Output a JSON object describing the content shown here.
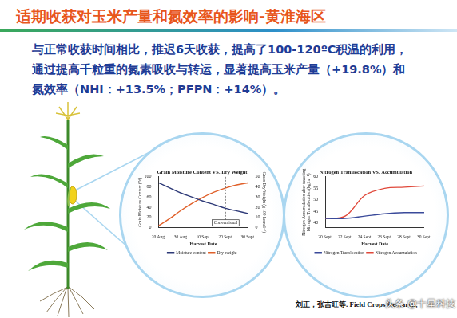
{
  "slide": {
    "title": "适期收获对玉米产量和氮效率的影响-黄淮海区",
    "body": [
      "与正常收获时间相比，推迟6天收获，提高了100-120ºC积温的利用，",
      "通过提高千粒重的氮素吸收与转运，显著提高玉米产量（+19.8%）和",
      "氮效率（NHI：+13.5%；PFPN：+14%）。"
    ],
    "citation": "刘正，张吉旺等. Field Crops Research,",
    "watermark": "头条 @十星科技"
  },
  "chart_data": [
    {
      "type": "line",
      "title": "Grain Moisture Content VS. Dry Weight",
      "xlabel": "Harvest Date",
      "ylabel": "Grain Moisture Content (%)",
      "y2label": "Grain Dry Weight (g 100 kernel⁻¹)",
      "categories": [
        "20 Aug.",
        null,
        "30 Aug.",
        null,
        "10 Sept.",
        null,
        "20 Sept.",
        null,
        "30 Sept."
      ],
      "series": [
        {
          "name": "Moisture content",
          "color": "#2e3a78",
          "values": [
            88,
            78,
            68,
            60,
            52,
            45,
            38,
            33,
            28
          ]
        },
        {
          "name": "Dry weight",
          "color": "#e0602a",
          "axis": "y2",
          "values": [
            2,
            9,
            17,
            24,
            30,
            35,
            39,
            42,
            44
          ]
        }
      ],
      "ylim": [
        0,
        100
      ],
      "yticks": [
        0,
        20,
        40,
        60,
        80,
        100
      ],
      "y2lim": [
        0,
        50
      ],
      "y2ticks": [
        0,
        10,
        20,
        30,
        40,
        50
      ],
      "grid": false,
      "legend": "bottom",
      "annotations": [
        {
          "text": "Conventional",
          "x": "20 Sept."
        }
      ]
    },
    {
      "type": "line",
      "title": "Nitrogen Translocation VS. Accumulation",
      "xlabel": "Harvest Date",
      "ylabel": [
        "Nitrogen Accumulation after tasseling",
        "Nitrogen Translocation (kg ha⁻¹)"
      ],
      "categories": [
        "20 Sept.",
        "22 Sept.",
        "24 Sept.",
        "26 Sept.",
        "28 Sept.",
        "30 Sept."
      ],
      "series": [
        {
          "name": "Nitrogen Translocation",
          "color": "#3a4a9a",
          "values": [
            42,
            42,
            43,
            44,
            44.5,
            44.5
          ]
        },
        {
          "name": "Nitrogen Accumulation",
          "color": "#e0483a",
          "values": [
            42,
            43,
            52,
            55,
            55.5,
            56
          ]
        }
      ],
      "ylim": [
        38,
        60
      ],
      "yticks": [
        40,
        45,
        50,
        55,
        60
      ],
      "grid": false,
      "legend": "bottom"
    }
  ]
}
